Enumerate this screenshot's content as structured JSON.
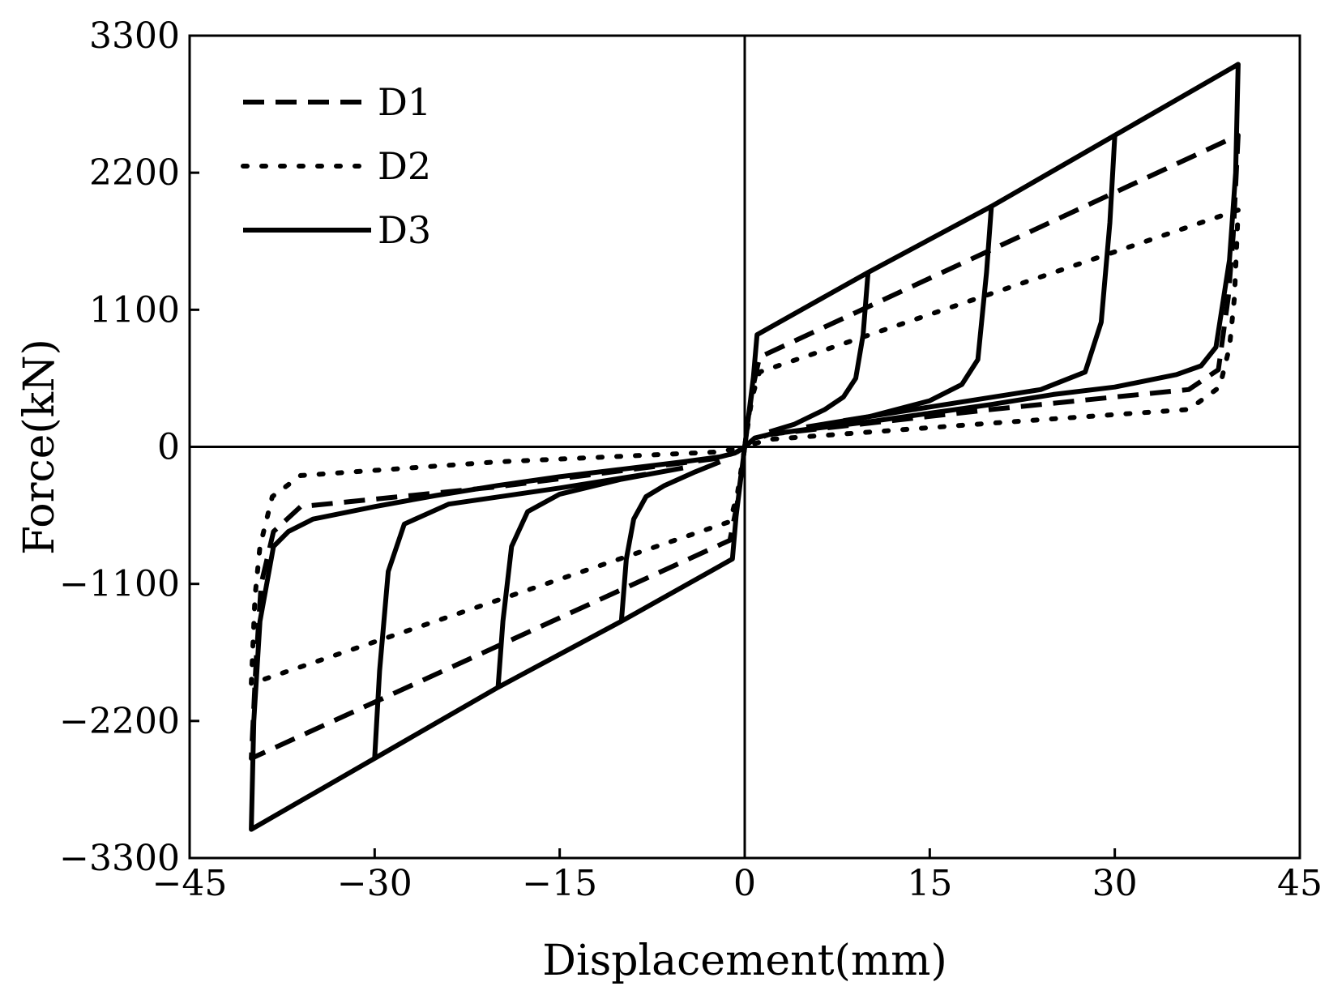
{
  "chart_data": {
    "type": "line",
    "xlabel": "Displacement(mm)",
    "ylabel": "Force(kN)",
    "xlim": [
      -45,
      45
    ],
    "ylim": [
      -3300,
      3300
    ],
    "xticks": [
      "−45",
      "−30",
      "−15",
      "0",
      "15",
      "30",
      "45"
    ],
    "yticks": [
      "3300",
      "2200",
      "1100",
      "0",
      "−1100",
      "−2200",
      "−3300"
    ],
    "xtick_values": [
      -45,
      -30,
      -15,
      0,
      15,
      30,
      45
    ],
    "ytick_values": [
      3300,
      2200,
      1100,
      0,
      -1100,
      -2200,
      -3300
    ],
    "legend_position": "top-left",
    "series": [
      {
        "name": "D1",
        "style": "dashed",
        "color": "#000000",
        "points": [
          [
            0,
            0
          ],
          [
            0.6,
            450
          ],
          [
            1.2,
            720
          ],
          [
            40,
            2500
          ],
          [
            39.6,
            1700
          ],
          [
            39.2,
            1200
          ],
          [
            38.4,
            620
          ],
          [
            36,
            460
          ],
          [
            20,
            300
          ],
          [
            2,
            100
          ],
          [
            0.6,
            50
          ],
          [
            0,
            0
          ],
          [
            -0.6,
            -450
          ],
          [
            -1.2,
            -750
          ],
          [
            -40,
            -2500
          ],
          [
            -39.6,
            -1700
          ],
          [
            -39.2,
            -1100
          ],
          [
            -38.2,
            -680
          ],
          [
            -36,
            -480
          ],
          [
            -20,
            -320
          ],
          [
            -2,
            -90
          ],
          [
            -0.6,
            -40
          ],
          [
            0,
            0
          ]
        ]
      },
      {
        "name": "D2",
        "style": "dotted",
        "color": "#000000",
        "points": [
          [
            0,
            0
          ],
          [
            0.6,
            400
          ],
          [
            1.2,
            600
          ],
          [
            40,
            1900
          ],
          [
            39.7,
            1200
          ],
          [
            39.3,
            800
          ],
          [
            38.5,
            480
          ],
          [
            36,
            300
          ],
          [
            20,
            190
          ],
          [
            2,
            60
          ],
          [
            0.6,
            20
          ],
          [
            0,
            0
          ],
          [
            -0.6,
            -380
          ],
          [
            -1.2,
            -600
          ],
          [
            -40,
            -1900
          ],
          [
            -39.7,
            -1200
          ],
          [
            -39.3,
            -800
          ],
          [
            -38.3,
            -400
          ],
          [
            -36,
            -230
          ],
          [
            -20,
            -120
          ],
          [
            -2,
            -40
          ],
          [
            -0.6,
            -10
          ],
          [
            0,
            0
          ]
        ]
      },
      {
        "name": "D3",
        "style": "solid",
        "color": "#000000",
        "points": [
          [
            0,
            0
          ],
          [
            0.7,
            560
          ],
          [
            1.0,
            900
          ],
          [
            10,
            1400
          ],
          [
            20,
            1930
          ],
          [
            30,
            2500
          ],
          [
            40,
            3070
          ],
          [
            39.8,
            2200
          ],
          [
            39.3,
            1500
          ],
          [
            38.2,
            800
          ],
          [
            37,
            650
          ],
          [
            35,
            580
          ],
          [
            30,
            480
          ],
          [
            25,
            420
          ],
          [
            20,
            340
          ],
          [
            15,
            270
          ],
          [
            10,
            200
          ],
          [
            5,
            140
          ],
          [
            2,
            100
          ],
          [
            0.8,
            70
          ],
          [
            0,
            0
          ],
          [
            -0.7,
            -560
          ],
          [
            -1.0,
            -900
          ],
          [
            -10,
            -1400
          ],
          [
            -20,
            -1930
          ],
          [
            -30,
            -2500
          ],
          [
            -40,
            -3070
          ],
          [
            -39.8,
            -2200
          ],
          [
            -39.3,
            -1400
          ],
          [
            -38.2,
            -800
          ],
          [
            -37,
            -680
          ],
          [
            -35,
            -580
          ],
          [
            -30,
            -480
          ],
          [
            -25,
            -390
          ],
          [
            -20,
            -310
          ],
          [
            -15,
            -240
          ],
          [
            -10,
            -180
          ],
          [
            -5,
            -120
          ],
          [
            -2,
            -80
          ],
          [
            -0.8,
            -50
          ],
          [
            0,
            0
          ]
        ],
        "inner_loops": [
          [
            [
              10,
              1400
            ],
            [
              9.6,
              900
            ],
            [
              9.0,
              550
            ],
            [
              8.0,
              400
            ],
            [
              6.5,
              300
            ],
            [
              4,
              180
            ],
            [
              2,
              120
            ]
          ],
          [
            [
              20,
              1930
            ],
            [
              19.6,
              1400
            ],
            [
              18.9,
              700
            ],
            [
              17.6,
              500
            ],
            [
              15,
              370
            ],
            [
              10,
              240
            ],
            [
              5,
              160
            ]
          ],
          [
            [
              30,
              2500
            ],
            [
              29.6,
              1800
            ],
            [
              28.9,
              1000
            ],
            [
              27.6,
              600
            ],
            [
              24,
              460
            ],
            [
              15,
              320
            ],
            [
              8,
              210
            ]
          ],
          [
            [
              -10,
              -1400
            ],
            [
              -9.6,
              -900
            ],
            [
              -9.0,
              -580
            ],
            [
              -8.0,
              -400
            ],
            [
              -6.5,
              -310
            ],
            [
              -4,
              -200
            ],
            [
              -2,
              -120
            ]
          ],
          [
            [
              -20,
              -1930
            ],
            [
              -19.6,
              -1400
            ],
            [
              -18.9,
              -800
            ],
            [
              -17.6,
              -520
            ],
            [
              -15,
              -380
            ],
            [
              -10,
              -260
            ],
            [
              -5,
              -170
            ]
          ],
          [
            [
              -30,
              -2500
            ],
            [
              -29.6,
              -1800
            ],
            [
              -28.9,
              -1000
            ],
            [
              -27.6,
              -620
            ],
            [
              -24,
              -460
            ],
            [
              -15,
              -330
            ],
            [
              -8,
              -220
            ]
          ]
        ]
      }
    ]
  }
}
